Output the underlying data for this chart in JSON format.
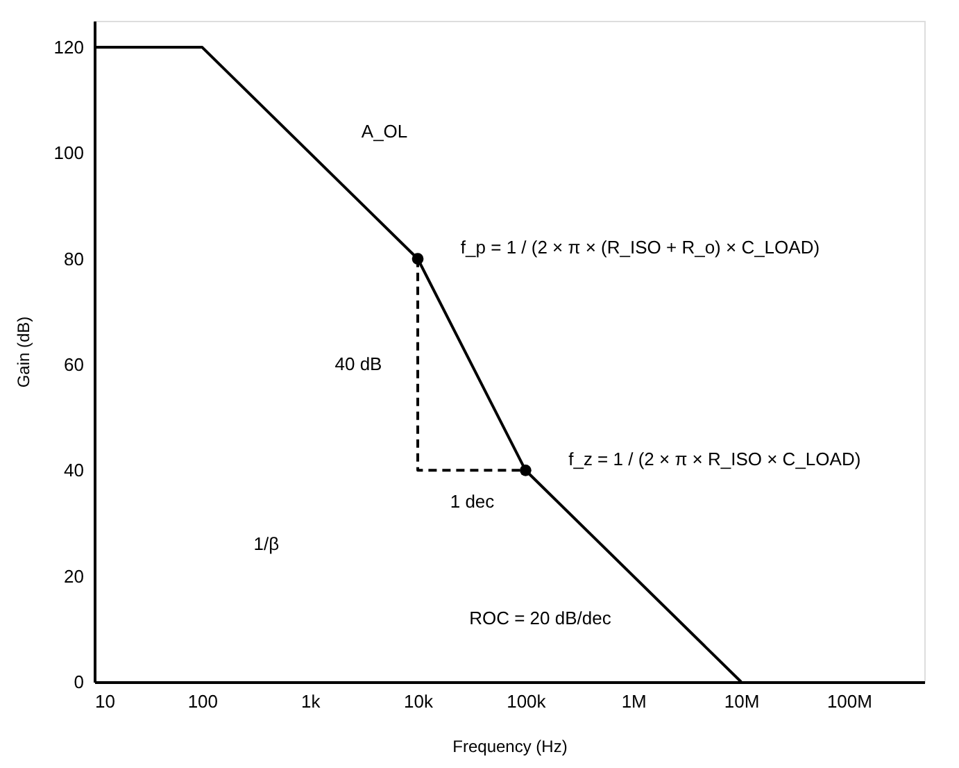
{
  "chart_data": {
    "type": "line",
    "xlabel": "Frequency (Hz)",
    "ylabel": "Gain (dB)",
    "log": "x",
    "grid": false,
    "xlim": [
      10,
      500000000
    ],
    "ylim": [
      0,
      125
    ],
    "xticks": [
      {
        "value": 10,
        "label": "10"
      },
      {
        "value": 100,
        "label": "100"
      },
      {
        "value": 1000,
        "label": "1k"
      },
      {
        "value": 10000,
        "label": "10k"
      },
      {
        "value": 100000,
        "label": "100k"
      },
      {
        "value": 1000000,
        "label": "1M"
      },
      {
        "value": 10000000,
        "label": "10M"
      },
      {
        "value": 100000000,
        "label": "100M"
      }
    ],
    "yticks": [
      0,
      20,
      40,
      60,
      80,
      100,
      120
    ],
    "series": [
      {
        "color": "#000000",
        "line_style": "solid",
        "x": [
          10,
          100,
          10000,
          100000,
          10000000
        ],
        "values": [
          120,
          120,
          80,
          40,
          0
        ]
      },
      {
        "type": "line",
        "color": "#000000",
        "line_style": "dashed",
        "x": [
          10000,
          10000,
          100000
        ],
        "values": [
          80,
          40,
          40
        ]
      },
      {
        "type": "scatter",
        "color": "#000000",
        "marker": "circle",
        "x": [
          10000,
          100000
        ],
        "values": [
          80,
          40
        ]
      }
    ],
    "annotations": [
      "A_OL",
      "f_p = 1 / (2 × π × (R_ISO + R_o) × C_LOAD)",
      "f_z = 1 / (2 × π × R_ISO × C_LOAD)",
      "40 dB",
      "1 dec",
      "1/β",
      "ROC = 20 dB/dec"
    ]
  }
}
